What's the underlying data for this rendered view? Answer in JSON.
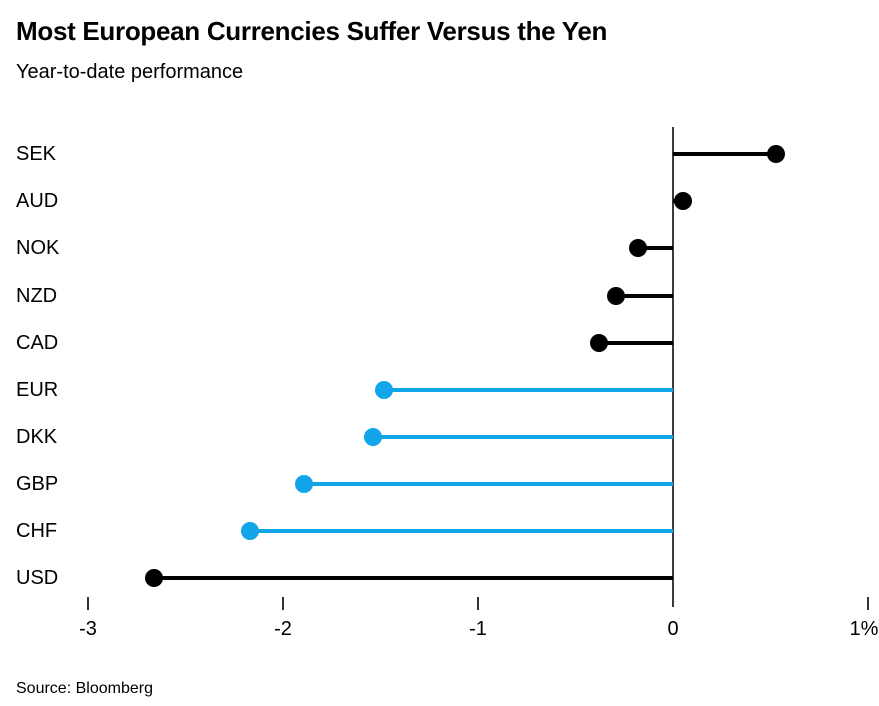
{
  "header": {
    "title": "Most European Currencies Suffer Versus the Yen",
    "subtitle": "Year-to-date performance"
  },
  "source": "Source: Bloomberg",
  "colors": {
    "black": "#000000",
    "blue": "#12a5ea",
    "axis": "#3a3a3a",
    "tick": "#333333"
  },
  "chart_data": {
    "type": "bar",
    "style": "horizontal-lollipop",
    "title": "Most European Currencies Suffer Versus the Yen",
    "subtitle": "Year-to-date performance",
    "xlabel": "",
    "ylabel": "",
    "categories": [
      "SEK",
      "AUD",
      "NOK",
      "NZD",
      "CAD",
      "EUR",
      "DKK",
      "GBP",
      "CHF",
      "USD"
    ],
    "values": [
      0.53,
      0.05,
      -0.18,
      -0.29,
      -0.38,
      -1.48,
      -1.54,
      -1.89,
      -2.17,
      -2.66
    ],
    "bar_colors": [
      "#000000",
      "#000000",
      "#000000",
      "#000000",
      "#000000",
      "#12a5ea",
      "#12a5ea",
      "#12a5ea",
      "#12a5ea",
      "#000000"
    ],
    "unit": "%",
    "xlim": [
      -3,
      1
    ],
    "xtick_values": [
      -3,
      -2,
      -1,
      0,
      1
    ],
    "xtick_labels": [
      "-3",
      "-2",
      "-1",
      "0",
      "1%"
    ],
    "baseline": 0,
    "grid": false,
    "legend": false,
    "source": "Source: Bloomberg"
  }
}
